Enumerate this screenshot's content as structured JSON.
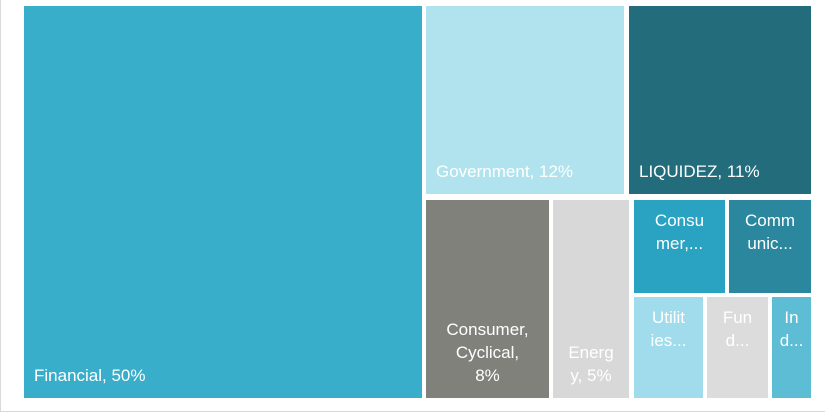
{
  "chart_data": {
    "type": "treemap",
    "items": [
      {
        "label": "Financial, 50%",
        "name": "Financial",
        "value": 50,
        "color": "#38aecb",
        "text_color": "#ffffff"
      },
      {
        "label": "Government, 12%",
        "name": "Government",
        "value": 12,
        "color": "#b1e3ee",
        "text_color": "#ffffff"
      },
      {
        "label": "LIQUIDEZ, 11%",
        "name": "LIQUIDEZ",
        "value": 11,
        "color": "#226c7b",
        "text_color": "#ffffff"
      },
      {
        "label": "Consumer,\nCyclical,\n8%",
        "name": "Consumer, Cyclical",
        "value": 8,
        "color": "#81817c",
        "text_color": "#ffffff"
      },
      {
        "label": "Energ\ny, 5%",
        "name": "Energy",
        "value": 5,
        "color": "#d8d8d8",
        "text_color": "#ffffff"
      },
      {
        "label": "Consu\nmer,...",
        "name": "Consumer",
        "color": "#2aa3c3",
        "text_color": "#ffffff"
      },
      {
        "label": "Comm\nunic...",
        "name": "Communications",
        "color": "#2b879d",
        "text_color": "#ffffff"
      },
      {
        "label": "Utilit\nies...",
        "name": "Utilities",
        "color": "#a1dced",
        "text_color": "#ffffff"
      },
      {
        "label": "Fun\nd...",
        "name": "Funds",
        "color": "#dcdcdc",
        "text_color": "#ffffff"
      },
      {
        "label": "In\nd...",
        "name": "Industrial",
        "color": "#5dbdd4",
        "text_color": "#ffffff"
      }
    ]
  }
}
